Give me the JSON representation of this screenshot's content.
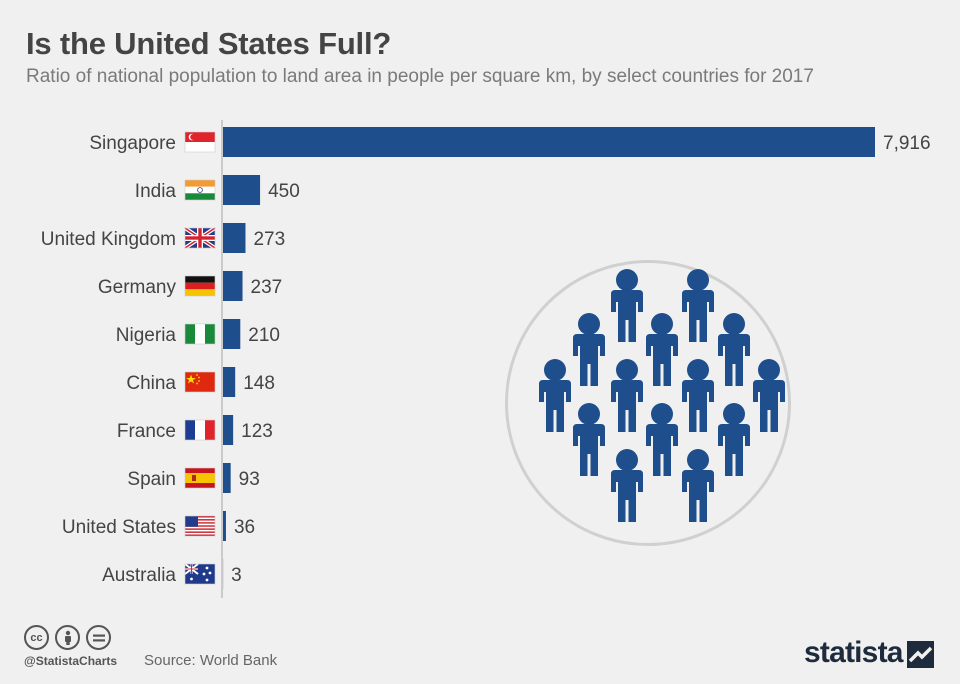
{
  "title": "Is the United States Full?",
  "subtitle": "Ratio of national population to land area in people per square km, by select countries for 2017",
  "chart_data": {
    "type": "bar",
    "orientation": "horizontal",
    "categories": [
      "Singapore",
      "India",
      "United Kingdom",
      "Germany",
      "Nigeria",
      "China",
      "France",
      "Spain",
      "United States",
      "Australia"
    ],
    "values": [
      7916,
      450,
      273,
      237,
      210,
      148,
      123,
      93,
      36,
      3
    ],
    "value_labels": [
      "7,916",
      "450",
      "273",
      "237",
      "210",
      "148",
      "123",
      "93",
      "36",
      "3"
    ],
    "flags": [
      "singapore-flag-icon",
      "india-flag-icon",
      "united-kingdom-flag-icon",
      "germany-flag-icon",
      "nigeria-flag-icon",
      "china-flag-icon",
      "france-flag-icon",
      "spain-flag-icon",
      "united-states-flag-icon",
      "australia-flag-icon"
    ],
    "bar_color": "#1f4e8c",
    "xlim": [
      0,
      7916
    ],
    "grid": false,
    "legend": "none"
  },
  "colors": {
    "background": "#f0f0f0",
    "bar": "#1f4e8c",
    "people": "#1f4e8c",
    "brand": "#1e2b3c"
  },
  "footer": {
    "handle": "@StatistaCharts",
    "source": "Source: World Bank",
    "brand": "statista",
    "license_icons": [
      "cc-icon",
      "attribution-icon",
      "no-derivatives-icon"
    ]
  }
}
